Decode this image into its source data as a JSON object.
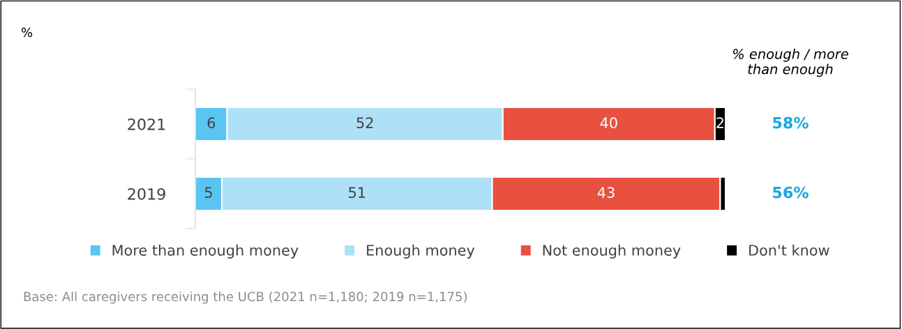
{
  "chart_data": {
    "type": "bar",
    "orientation": "horizontal",
    "stacked": true,
    "categories": [
      "2021",
      "2019"
    ],
    "series": [
      {
        "name": "More than enough money",
        "color": "#5bc5f2",
        "values": [
          6,
          5
        ],
        "value_labels": [
          "6",
          "5"
        ]
      },
      {
        "name": "Enough money",
        "color": "#aee0f7",
        "values": [
          52,
          51
        ],
        "value_labels": [
          "52",
          "51"
        ]
      },
      {
        "name": "Not enough money",
        "color": "#e85040",
        "values": [
          40,
          43
        ],
        "value_labels": [
          "40",
          "43"
        ]
      },
      {
        "name": "Don't know",
        "color": "#000000",
        "values": [
          2,
          1
        ],
        "value_labels": [
          "2",
          null
        ]
      }
    ],
    "legend": "bottom",
    "grid": false,
    "annotations": [
      "%",
      "% enough / more\nthan enough",
      "58%",
      "56%",
      "Base: All caregivers receiving the UCB (2021 n=1,180; 2019 n=1,175)"
    ]
  }
}
